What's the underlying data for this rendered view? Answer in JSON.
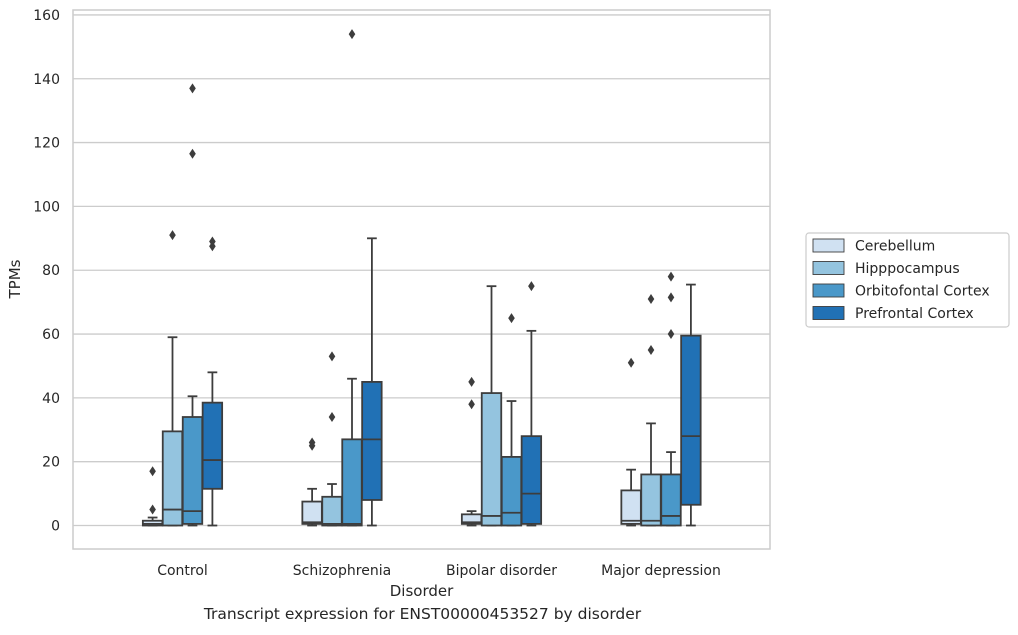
{
  "caption": "Transcript expression for ENST00000453527 by disorder",
  "chart_data": {
    "type": "box",
    "xlabel": "Disorder",
    "ylabel": "TPMs",
    "ylim": [
      -7.5,
      161
    ],
    "yticks": [
      0,
      20,
      40,
      60,
      80,
      100,
      120,
      140,
      160
    ],
    "grid": "horizontal",
    "legend_position": "right",
    "categories": [
      "Control",
      "Schizophrenia",
      "Bipolar disorder",
      "Major depression"
    ],
    "series": [
      {
        "name": "Cerebellum",
        "color": "#d0e1f2",
        "boxes": [
          {
            "whislo": 0,
            "q1": 0,
            "med": 0.5,
            "q3": 1.5,
            "whishi": 2.5,
            "fliers": [
              5,
              17
            ]
          },
          {
            "whislo": 0,
            "q1": 0.5,
            "med": 1,
            "q3": 7.5,
            "whishi": 11.5,
            "fliers": [
              25,
              26
            ]
          },
          {
            "whislo": 0,
            "q1": 0.5,
            "med": 1,
            "q3": 3.5,
            "whishi": 4.5,
            "fliers": [
              38,
              45
            ]
          },
          {
            "whislo": 0,
            "q1": 0.5,
            "med": 1.5,
            "q3": 11,
            "whishi": 17.5,
            "fliers": [
              51
            ]
          }
        ]
      },
      {
        "name": "Hipppocampus",
        "color": "#94c4df",
        "boxes": [
          {
            "whislo": 0,
            "q1": 0,
            "med": 5,
            "q3": 29.5,
            "whishi": 59,
            "fliers": [
              91
            ]
          },
          {
            "whislo": 0,
            "q1": 0,
            "med": 0.5,
            "q3": 9,
            "whishi": 13,
            "fliers": [
              34,
              53
            ]
          },
          {
            "whislo": 0,
            "q1": 0,
            "med": 3,
            "q3": 41.5,
            "whishi": 75,
            "fliers": []
          },
          {
            "whislo": 0,
            "q1": 0,
            "med": 1.5,
            "q3": 16,
            "whishi": 32,
            "fliers": [
              55,
              71
            ]
          }
        ]
      },
      {
        "name": "Orbitofontal Cortex",
        "color": "#4a98c9",
        "boxes": [
          {
            "whislo": 0,
            "q1": 0.5,
            "med": 4.5,
            "q3": 34,
            "whishi": 40.5,
            "fliers": [
              116.5,
              137
            ]
          },
          {
            "whislo": 0,
            "q1": 0,
            "med": 0.5,
            "q3": 27,
            "whishi": 46,
            "fliers": [
              154
            ]
          },
          {
            "whislo": 0,
            "q1": 0,
            "med": 4,
            "q3": 21.5,
            "whishi": 39,
            "fliers": [
              65
            ]
          },
          {
            "whislo": 0,
            "q1": 0,
            "med": 3,
            "q3": 16,
            "whishi": 23,
            "fliers": [
              60,
              71.5,
              78
            ]
          }
        ]
      },
      {
        "name": "Prefrontal Cortex",
        "color": "#2171b5",
        "boxes": [
          {
            "whislo": 0,
            "q1": 11.5,
            "med": 20.5,
            "q3": 38.5,
            "whishi": 48,
            "fliers": [
              87.5,
              89
            ]
          },
          {
            "whislo": 0,
            "q1": 8,
            "med": 27,
            "q3": 45,
            "whishi": 90,
            "fliers": []
          },
          {
            "whislo": 0,
            "q1": 0.5,
            "med": 10,
            "q3": 28,
            "whishi": 61,
            "fliers": [
              75
            ]
          },
          {
            "whislo": 0,
            "q1": 6.5,
            "med": 28,
            "q3": 59.5,
            "whishi": 75.5,
            "fliers": []
          }
        ]
      }
    ]
  }
}
